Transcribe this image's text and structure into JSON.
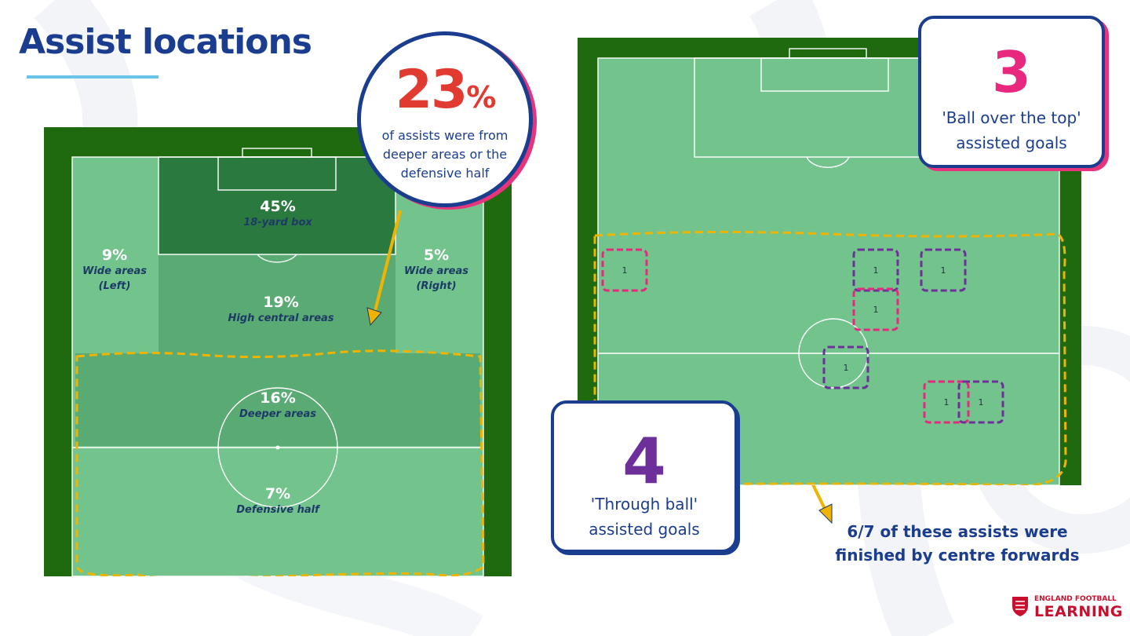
{
  "title": "Assist locations",
  "colors": {
    "navy": "#1b3d8f",
    "red": "#e03a31",
    "pink": "#e8287f",
    "purple": "#6d2f9a",
    "gold": "#f0b400",
    "pitch_dark": "#1f6a0f",
    "pitch_light": "#72c48c"
  },
  "left_pitch": {
    "zones": {
      "box": {
        "pct": "45%",
        "name": "18-yard box"
      },
      "wide_left": {
        "pct": "9%",
        "name_line1": "Wide areas",
        "name_line2": "(Left)"
      },
      "wide_right": {
        "pct": "5%",
        "name_line1": "Wide areas",
        "name_line2": "(Right)"
      },
      "high_central": {
        "pct": "19%",
        "name": "High central areas"
      },
      "deeper": {
        "pct": "16%",
        "name": "Deeper areas"
      },
      "defensive": {
        "pct": "7%",
        "name": "Defensive half"
      }
    }
  },
  "stat_circle": {
    "value": "23",
    "unit": "%",
    "description": "of assists were from deeper areas or the defensive half"
  },
  "right_pitch": {
    "markers": [
      {
        "type": "ball-over-the-top",
        "label": "1"
      },
      {
        "type": "through-ball",
        "label": "1"
      },
      {
        "type": "through-ball",
        "label": "1"
      },
      {
        "type": "ball-over-the-top",
        "label": "1"
      },
      {
        "type": "through-ball",
        "label": "1"
      },
      {
        "type": "ball-over-the-top",
        "label": "1"
      },
      {
        "type": "through-ball",
        "label": "1"
      }
    ]
  },
  "card_top": {
    "number": "3",
    "text_line1": "'Ball over the top'",
    "text_line2": "assisted goals"
  },
  "card_bottom": {
    "number": "4",
    "text_line1": "'Through ball'",
    "text_line2": "assisted goals"
  },
  "note": {
    "line1": "6/7 of these assists were",
    "line2": "finished by centre forwards"
  },
  "logo": {
    "line1": "ENGLAND FOOTBALL",
    "line2": "LEARNING"
  }
}
